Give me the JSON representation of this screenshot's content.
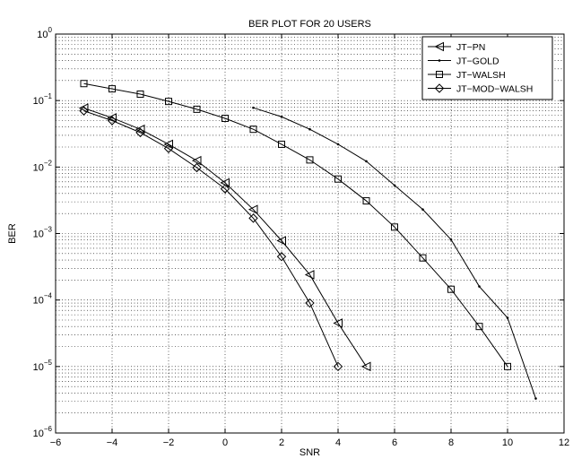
{
  "chart_data": {
    "type": "line",
    "title": "BER PLOT FOR 20 USERS",
    "xlabel": "SNR",
    "ylabel": "BER",
    "xlim": [
      -6,
      12
    ],
    "ylim": [
      1e-06,
      1
    ],
    "yscale": "log",
    "grid": true,
    "legend_position": "top-right",
    "x_ticks": [
      -6,
      -4,
      -2,
      0,
      2,
      4,
      6,
      8,
      10,
      12
    ],
    "x_tick_labels": [
      "−6",
      "−4",
      "−2",
      "0",
      "2",
      "4",
      "6",
      "8",
      "10",
      "12"
    ],
    "y_ticks": [
      1e-06,
      1e-05,
      0.0001,
      0.001,
      0.01,
      0.1,
      1
    ],
    "y_tick_labels": [
      {
        "base": "10",
        "exp": "−6"
      },
      {
        "base": "10",
        "exp": "−5"
      },
      {
        "base": "10",
        "exp": "−4"
      },
      {
        "base": "10",
        "exp": "−3"
      },
      {
        "base": "10",
        "exp": "−2"
      },
      {
        "base": "10",
        "exp": "−1"
      },
      {
        "base": "10",
        "exp": "0"
      }
    ],
    "series": [
      {
        "name": "JT−PN",
        "marker": "triangle-left",
        "x": [
          -5,
          -4,
          -3,
          -2,
          -1,
          0,
          1,
          2,
          3,
          4,
          5
        ],
        "y": [
          0.077,
          0.055,
          0.037,
          0.022,
          0.0125,
          0.0058,
          0.0023,
          0.00078,
          0.00024,
          4.5e-05,
          1e-05
        ]
      },
      {
        "name": "JT−GOLD",
        "marker": "dot",
        "x": [
          1,
          2,
          3,
          4,
          5,
          6,
          7,
          8,
          9,
          10,
          11
        ],
        "y": [
          0.078,
          0.057,
          0.037,
          0.022,
          0.0122,
          0.0053,
          0.0023,
          0.00081,
          0.00016,
          5.4e-05,
          3.3e-06
        ]
      },
      {
        "name": "JT−WALSH",
        "marker": "square",
        "x": [
          -5,
          -4,
          -3,
          -2,
          -1,
          0,
          1,
          2,
          3,
          4,
          5,
          6,
          7,
          8,
          9,
          10
        ],
        "y": [
          0.18,
          0.15,
          0.125,
          0.097,
          0.074,
          0.054,
          0.037,
          0.022,
          0.0128,
          0.0066,
          0.0031,
          0.00125,
          0.00043,
          0.000145,
          4e-05,
          1e-05
        ]
      },
      {
        "name": "JT−MOD−WALSH",
        "marker": "diamond",
        "x": [
          -5,
          -4,
          -3,
          -2,
          -1,
          0,
          1,
          2,
          3,
          4
        ],
        "y": [
          0.07,
          0.05,
          0.033,
          0.019,
          0.0098,
          0.0047,
          0.0017,
          0.00045,
          9e-05,
          1e-05
        ]
      }
    ]
  }
}
